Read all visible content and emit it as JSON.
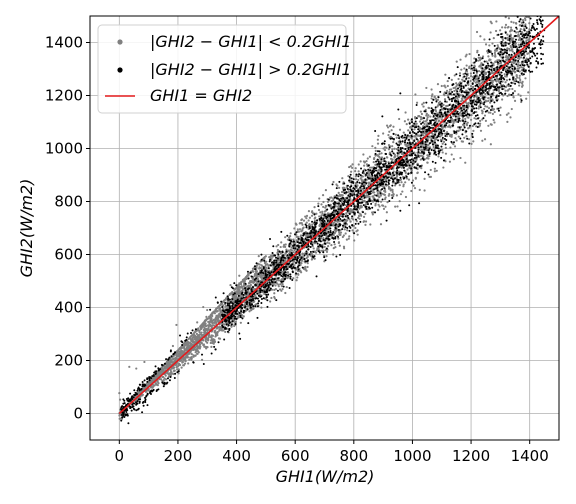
{
  "chart_data": {
    "type": "scatter",
    "xlabel": "GHI1(W/m2)",
    "ylabel": "GHI2(W/m2)",
    "xlim": [
      -100,
      1500
    ],
    "ylim": [
      -100,
      1500
    ],
    "x_ticks": [
      0,
      200,
      400,
      600,
      800,
      1000,
      1200,
      1400
    ],
    "y_ticks": [
      0,
      200,
      400,
      600,
      800,
      1000,
      1200,
      1400
    ],
    "grid": true,
    "legend_position": "top-left",
    "series": [
      {
        "name": "|GHI2 − GHI1| <  0.2GHI1",
        "color": "#808080",
        "marker": "dot",
        "relation": "within_20_percent"
      },
      {
        "name": "|GHI2 − GHI1| >  0.2GHI1",
        "color": "#000000",
        "marker": "dot",
        "relation": "outside_20_percent"
      },
      {
        "name": "GHI1 = GHI2",
        "color": "#e41a1c",
        "marker": "line",
        "x": [
          0,
          1500
        ],
        "y": [
          0,
          1500
        ]
      }
    ]
  }
}
